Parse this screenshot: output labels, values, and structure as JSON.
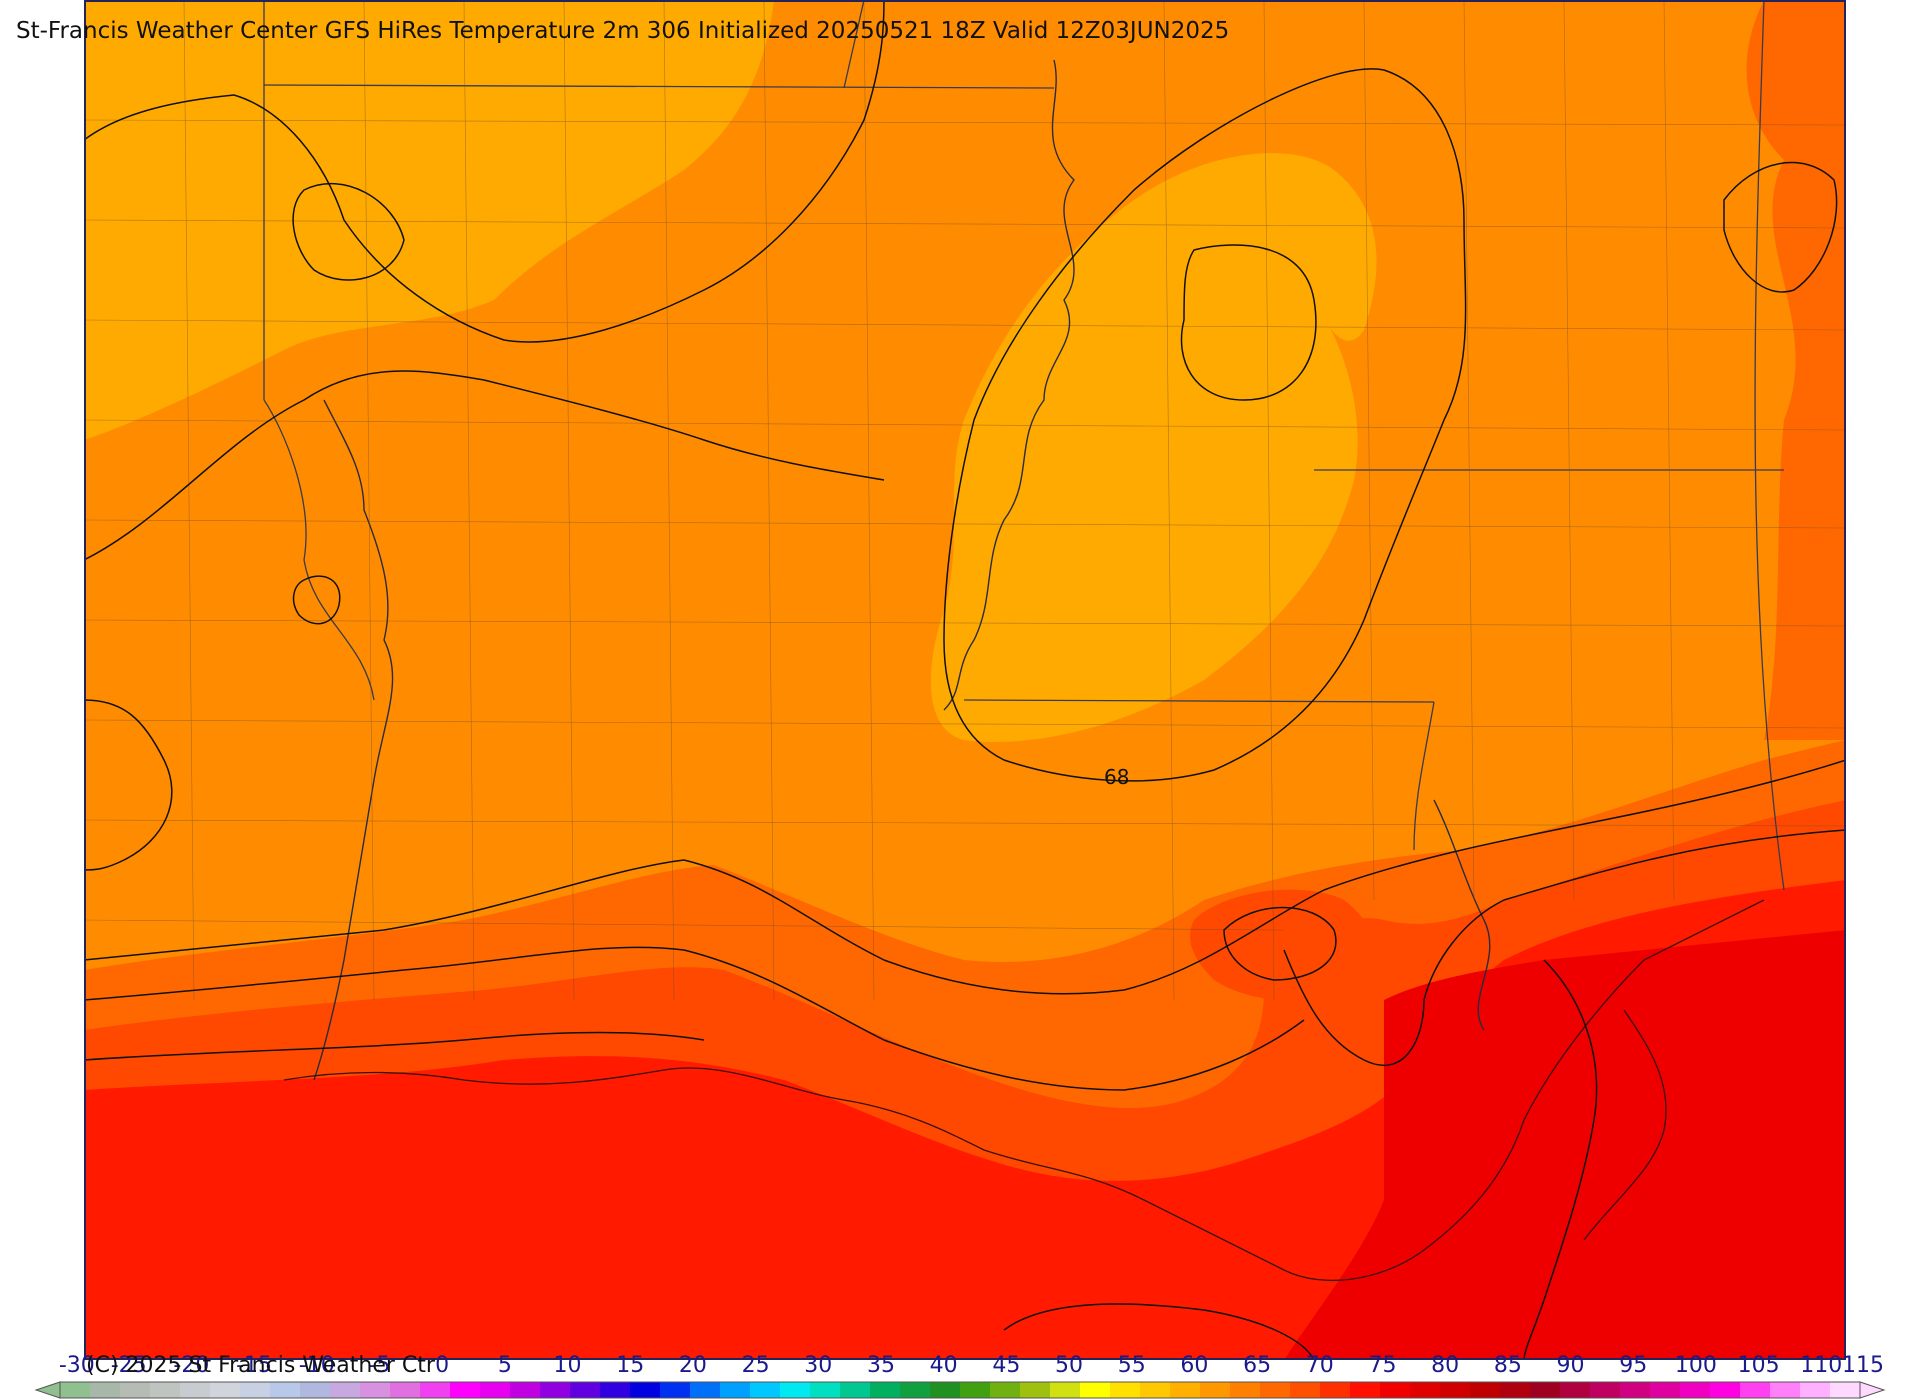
{
  "title": "St-Francis Weather Center GFS HiRes Temperature 2m  306 Initialized 20250521 18Z Valid 12Z03JUN2025",
  "copyright": "(C) 2025 St Francis Weather Ctr",
  "contour_label": "68",
  "colorbar": {
    "ticks": [
      "-30",
      "-25",
      "-20",
      "-15",
      "-10",
      "-5",
      "0",
      "5",
      "10",
      "15",
      "20",
      "25",
      "30",
      "35",
      "40",
      "45",
      "50",
      "55",
      "60",
      "65",
      "70",
      "75",
      "80",
      "85",
      "90",
      "95",
      "100",
      "105",
      "110",
      "115"
    ],
    "colors": [
      "#90c090",
      "#a8b8a8",
      "#b4bcb4",
      "#c0c4c0",
      "#c8ccd0",
      "#d0d4dc",
      "#c8d0e4",
      "#b8c8e8",
      "#b0b8e0",
      "#c8a8e0",
      "#d890e0",
      "#e070e0",
      "#f040f0",
      "#ff00ff",
      "#e800f0",
      "#c000e0",
      "#9000e0",
      "#6000e0",
      "#3000e0",
      "#0000e0",
      "#0030f0",
      "#0070f8",
      "#00a0ff",
      "#00c8ff",
      "#00e8f0",
      "#00e0c0",
      "#00c890",
      "#00b060",
      "#10a040",
      "#209020",
      "#40a010",
      "#70b010",
      "#a0c010",
      "#d0e010",
      "#ffff00",
      "#ffe000",
      "#ffc800",
      "#ffb000",
      "#ff9800",
      "#ff8000",
      "#ff6800",
      "#ff5000",
      "#ff3000",
      "#ff1000",
      "#f00000",
      "#e00000",
      "#d00000",
      "#c00000",
      "#b00010",
      "#a00020",
      "#b00040",
      "#c00060",
      "#d00080",
      "#e000a0",
      "#f000c0",
      "#ff00e0",
      "#ff40f0",
      "#ff80f8",
      "#ffb0ff",
      "#ffd8ff"
    ]
  },
  "temperature_colors": {
    "60_65": "#ffaa00",
    "65_70": "#ff8c00",
    "70_75": "#ff6800",
    "75_80": "#ff4800",
    "80_85": "#ff1a00",
    "85_90": "#ee0000"
  }
}
